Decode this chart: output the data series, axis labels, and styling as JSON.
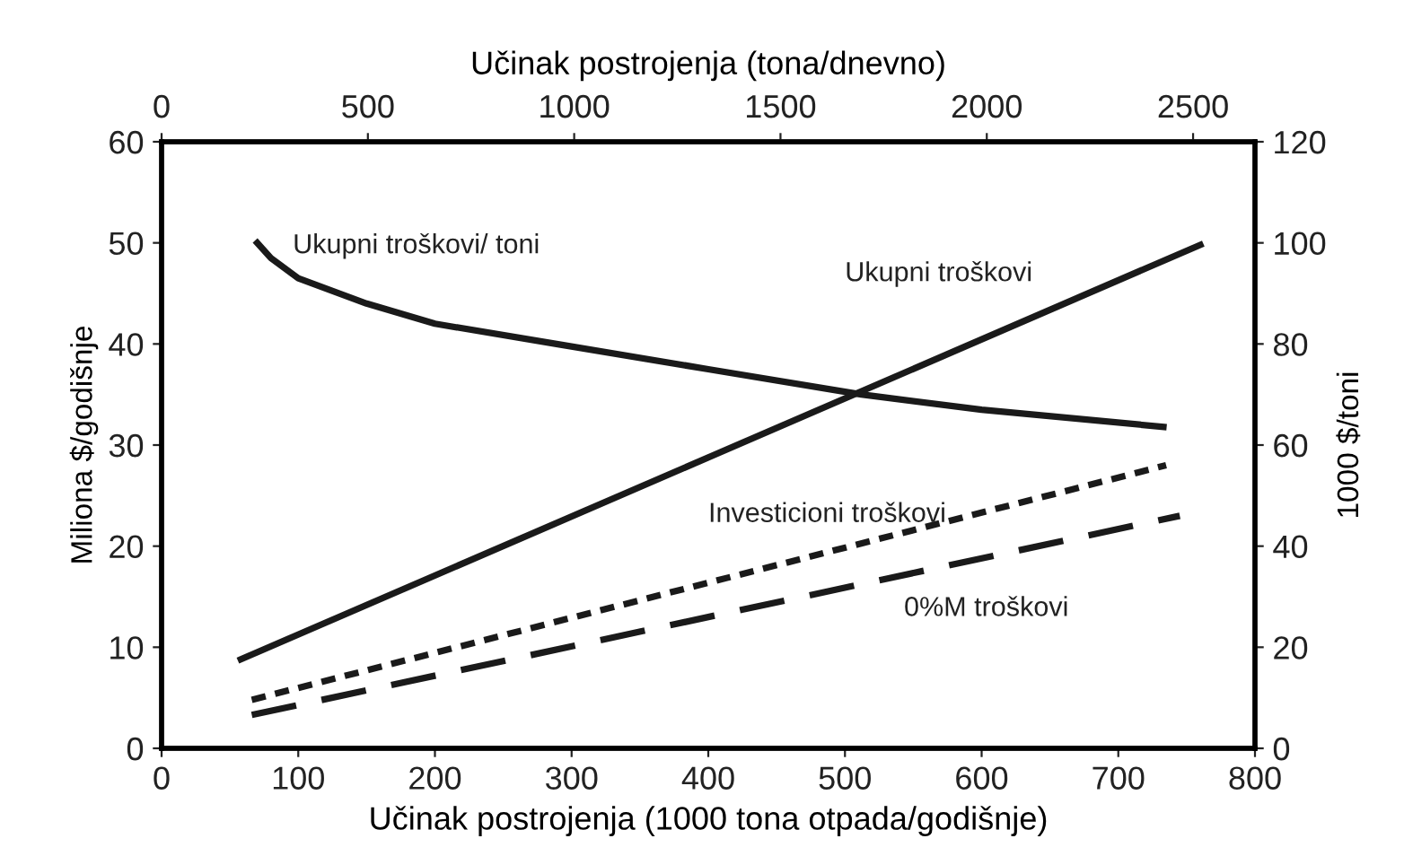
{
  "chart_data": {
    "type": "line",
    "xlabel": "Učinak postrojenja (1000 tona otpada/godišnje)",
    "x2label": "Učinak postrojenja (tona/dnevno)",
    "ylabel": "Miliona $/godišnje",
    "y2label": "1000 $/toni",
    "xlim": [
      0,
      800
    ],
    "xticks": [
      0,
      100,
      200,
      300,
      400,
      500,
      600,
      700,
      800
    ],
    "x2lim": [
      0,
      2650
    ],
    "x2ticks": [
      0,
      500,
      1000,
      1500,
      2000,
      2500
    ],
    "ylim": [
      0,
      60
    ],
    "yticks": [
      0,
      10,
      20,
      30,
      40,
      50,
      60
    ],
    "y2lim": [
      0,
      120
    ],
    "y2ticks": [
      0,
      20,
      40,
      60,
      80,
      100,
      120
    ],
    "grid": false,
    "legend": false,
    "series": [
      {
        "name": "Ukupni troškovi/ toni",
        "color": "#1a1a1a",
        "axis": "y2",
        "line_style": "solid",
        "x": [
          70,
          80,
          100,
          150,
          200,
          289,
          400,
          512,
          600,
          733
        ],
        "values": [
          100,
          97,
          93,
          88,
          84,
          80,
          75,
          70,
          67,
          63.6
        ]
      },
      {
        "name": "Ukupni troškovi",
        "color": "#1a1a1a",
        "line_style": "solid",
        "x": [
          58,
          760
        ],
        "values": [
          8.8,
          49.8
        ]
      },
      {
        "name": "Investicioni troškovi",
        "color": "#1a1a1a",
        "line_style": "dotted",
        "x": [
          66,
          735
        ],
        "values": [
          4.8,
          28
        ]
      },
      {
        "name": "0%M troškovi",
        "color": "#1a1a1a",
        "line_style": "dashed",
        "x": [
          66,
          745
        ],
        "values": [
          3.3,
          23
        ]
      }
    ]
  }
}
